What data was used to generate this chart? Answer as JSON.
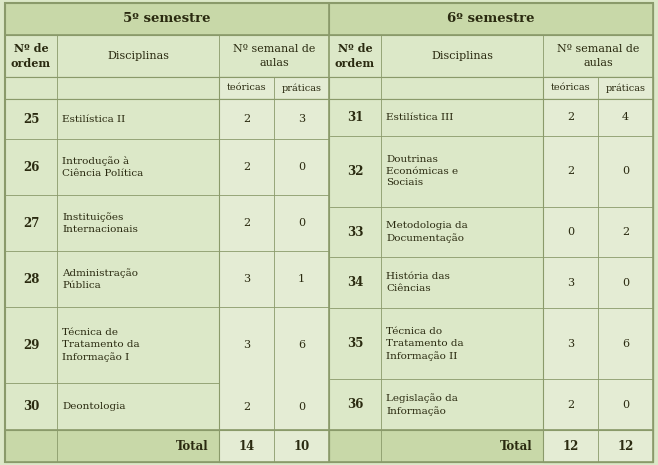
{
  "bg_color": "#dce8c8",
  "header_bg": "#c8d8a8",
  "num_col_bg": "#e4ecd4",
  "border_color": "#8a9a6a",
  "text_color": "#2a2a10",
  "semester5": "5º semestre",
  "semester6": "6º semestre",
  "font_family": "DejaVu Serif",
  "font_size": 8.0,
  "left_rows": [
    {
      "num": "25",
      "disc": "Estilística II",
      "teo": "2",
      "pra": "3",
      "lines": 1
    },
    {
      "num": "26",
      "disc": "Introdução à\nCiência Política",
      "teo": "2",
      "pra": "0",
      "lines": 2
    },
    {
      "num": "27",
      "disc": "Instituições\nInternacionais",
      "teo": "2",
      "pra": "0",
      "lines": 2
    },
    {
      "num": "28",
      "disc": "Administração\nPública",
      "teo": "3",
      "pra": "1",
      "lines": 2
    },
    {
      "num": "29",
      "disc": "Técnica de\nTratamento da\nInformação I",
      "teo": "3",
      "pra": "6",
      "lines": 3
    },
    {
      "num": "30",
      "disc": "Deontologia",
      "teo": "2",
      "pra": "0",
      "lines": 1
    }
  ],
  "right_rows": [
    {
      "num": "31",
      "disc": "Estilística III",
      "teo": "2",
      "pra": "4",
      "lines": 1
    },
    {
      "num": "32",
      "disc": "Doutrinas\nEconómicas e\nSociais",
      "teo": "2",
      "pra": "0",
      "lines": 3
    },
    {
      "num": "33",
      "disc": "Metodologia da\nDocumentação",
      "teo": "0",
      "pra": "2",
      "lines": 2
    },
    {
      "num": "34",
      "disc": "História das\nCiências",
      "teo": "3",
      "pra": "0",
      "lines": 2
    },
    {
      "num": "35",
      "disc": "Técnica do\nTratamento da\nInformação II",
      "teo": "3",
      "pra": "6",
      "lines": 3
    },
    {
      "num": "36",
      "disc": "Legislação da\nInformação",
      "teo": "2",
      "pra": "0",
      "lines": 2
    }
  ],
  "left_total": {
    "teo": "14",
    "pra": "10"
  },
  "right_total": {
    "teo": "12",
    "pra": "12"
  },
  "row29_30_combined": true
}
